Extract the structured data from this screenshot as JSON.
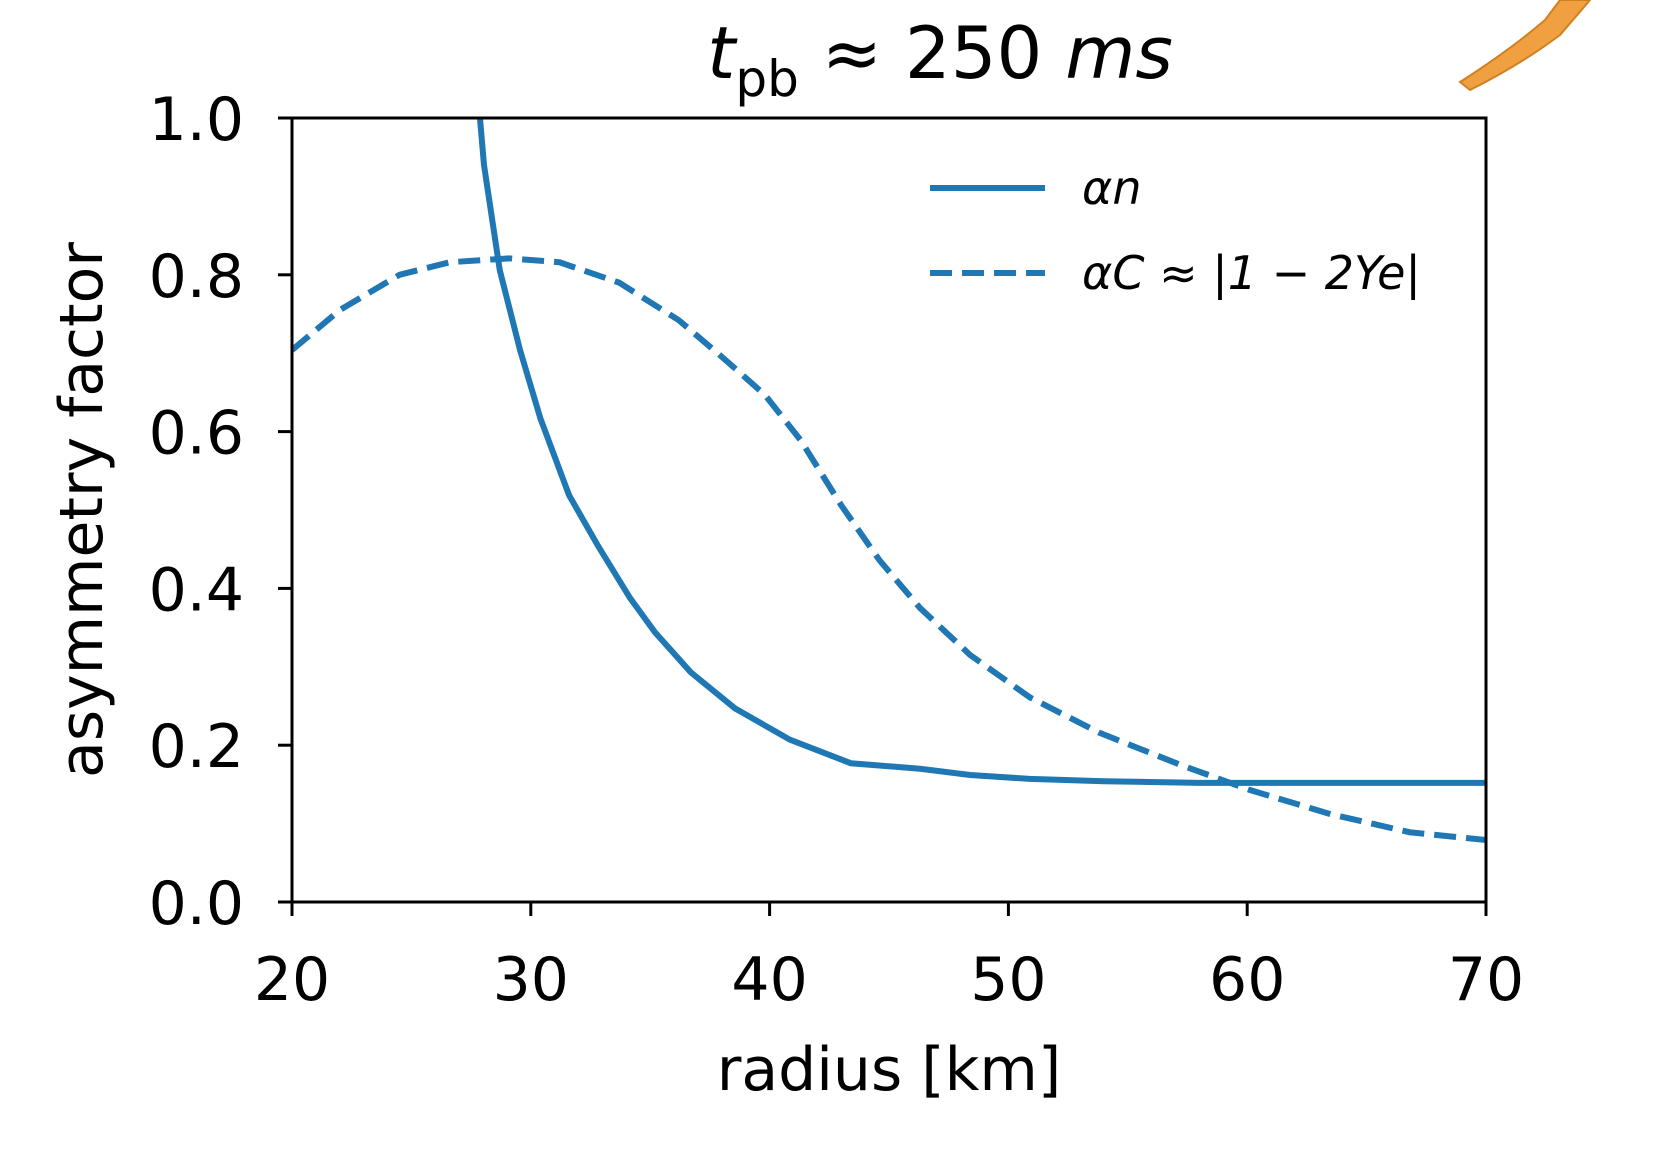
{
  "chart_data": {
    "type": "line",
    "title": [
      "t",
      "pb",
      " ≈ 250 ",
      "ms"
    ],
    "xlabel": "radius [km]",
    "ylabel": "asymmetry factor",
    "xlim": [
      20,
      70
    ],
    "xticks": [
      20,
      30,
      40,
      50,
      60,
      70
    ],
    "ylim": [
      0,
      1
    ],
    "yticks": [
      {
        "value": 0,
        "label": "0.0"
      },
      {
        "value": 0.2,
        "label": "0.2"
      },
      {
        "value": 0.4,
        "label": "0.4"
      },
      {
        "value": 0.6,
        "label": "0.6"
      },
      {
        "value": 0.8,
        "label": "0.8"
      },
      {
        "value": 1,
        "label": "1.0"
      }
    ],
    "legend": "upper right",
    "series": [
      {
        "name": "αn",
        "color": "#1f77b4",
        "dash": "solid",
        "x": [
          27.87,
          28.04,
          28.7,
          29.55,
          30.4,
          31.6,
          32.8,
          34.15,
          35.2,
          36.7,
          38.55,
          40.85,
          43.4,
          46.3,
          48.4,
          50.9,
          54,
          58,
          62,
          66,
          70
        ],
        "values": [
          1.0,
          0.94,
          0.806,
          0.704,
          0.617,
          0.519,
          0.455,
          0.388,
          0.344,
          0.293,
          0.247,
          0.207,
          0.177,
          0.17,
          0.162,
          0.157,
          0.154,
          0.152,
          0.152,
          0.152,
          0.152
        ]
      },
      {
        "name": "αC ≈ |1 − 2Ye|",
        "color": "#1f77b4",
        "dash": "dashed",
        "x": [
          20,
          22,
          24.5,
          26.6,
          29.1,
          31.2,
          33.7,
          36.2,
          37.9,
          39.8,
          41.3,
          43,
          44.6,
          46.3,
          48.4,
          50.9,
          53.8,
          57.2,
          60.1,
          63.5,
          66.8,
          70
        ],
        "values": [
          0.704,
          0.755,
          0.8,
          0.816,
          0.821,
          0.816,
          0.79,
          0.742,
          0.698,
          0.647,
          0.589,
          0.506,
          0.436,
          0.375,
          0.315,
          0.261,
          0.216,
          0.175,
          0.143,
          0.112,
          0.089,
          0.079
        ]
      }
    ]
  }
}
